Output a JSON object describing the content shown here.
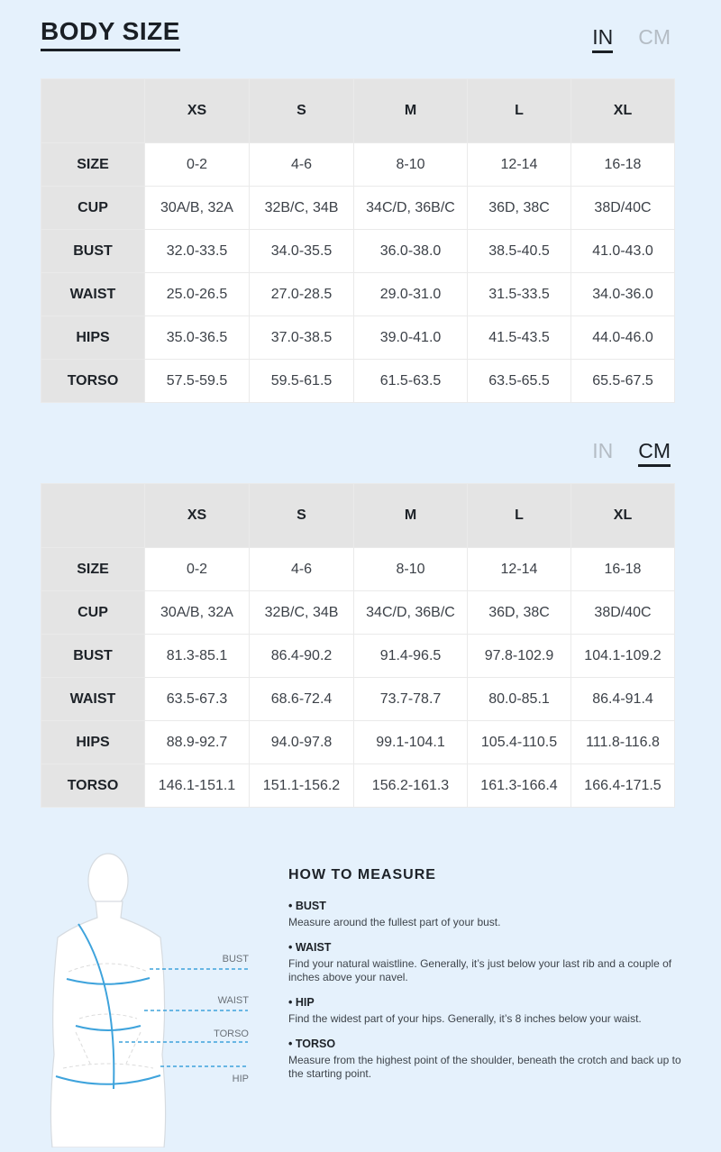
{
  "title": "BODY SIZE",
  "units": {
    "in": "IN",
    "cm": "CM"
  },
  "columns": [
    "",
    "XS",
    "S",
    "M",
    "L",
    "XL"
  ],
  "tables": [
    {
      "active_unit": "IN",
      "rows": [
        {
          "label": "SIZE",
          "values": [
            "0-2",
            "4-6",
            "8-10",
            "12-14",
            "16-18"
          ]
        },
        {
          "label": "CUP",
          "values": [
            "30A/B, 32A",
            "32B/C, 34B",
            "34C/D, 36B/C",
            "36D, 38C",
            "38D/40C"
          ]
        },
        {
          "label": "BUST",
          "values": [
            "32.0-33.5",
            "34.0-35.5",
            "36.0-38.0",
            "38.5-40.5",
            "41.0-43.0"
          ]
        },
        {
          "label": "WAIST",
          "values": [
            "25.0-26.5",
            "27.0-28.5",
            "29.0-31.0",
            "31.5-33.5",
            "34.0-36.0"
          ]
        },
        {
          "label": "HIPS",
          "values": [
            "35.0-36.5",
            "37.0-38.5",
            "39.0-41.0",
            "41.5-43.5",
            "44.0-46.0"
          ]
        },
        {
          "label": "TORSO",
          "values": [
            "57.5-59.5",
            "59.5-61.5",
            "61.5-63.5",
            "63.5-65.5",
            "65.5-67.5"
          ]
        }
      ]
    },
    {
      "active_unit": "CM",
      "rows": [
        {
          "label": "SIZE",
          "values": [
            "0-2",
            "4-6",
            "8-10",
            "12-14",
            "16-18"
          ]
        },
        {
          "label": "CUP",
          "values": [
            "30A/B, 32A",
            "32B/C, 34B",
            "34C/D, 36B/C",
            "36D, 38C",
            "38D/40C"
          ]
        },
        {
          "label": "BUST",
          "values": [
            "81.3-85.1",
            "86.4-90.2",
            "91.4-96.5",
            "97.8-102.9",
            "104.1-109.2"
          ]
        },
        {
          "label": "WAIST",
          "values": [
            "63.5-67.3",
            "68.6-72.4",
            "73.7-78.7",
            "80.0-85.1",
            "86.4-91.4"
          ]
        },
        {
          "label": "HIPS",
          "values": [
            "88.9-92.7",
            "94.0-97.8",
            "99.1-104.1",
            "105.4-110.5",
            "111.8-116.8"
          ]
        },
        {
          "label": "TORSO",
          "values": [
            "146.1-151.1",
            "151.1-156.2",
            "156.2-161.3",
            "161.3-166.4",
            "166.4-171.5"
          ]
        }
      ]
    }
  ],
  "figure": {
    "labels": {
      "bust": "BUST",
      "waist": "WAIST",
      "torso": "TORSO",
      "hip": "HIP"
    },
    "accent": "#3ea3dc"
  },
  "howto": {
    "title": "HOW TO MEASURE",
    "items": [
      {
        "heading": "• BUST",
        "text": "Measure around the fullest part of your bust."
      },
      {
        "heading": "• WAIST",
        "text": "Find your natural waistline. Generally, it’s just below your last rib and a couple of inches above your navel."
      },
      {
        "heading": "• HIP",
        "text": "Find the widest part of your hips. Generally, it’s 8 inches below your waist."
      },
      {
        "heading": "• TORSO",
        "text": "Measure from the highest point of the shoulder, beneath the crotch and back up to the starting point."
      }
    ]
  }
}
